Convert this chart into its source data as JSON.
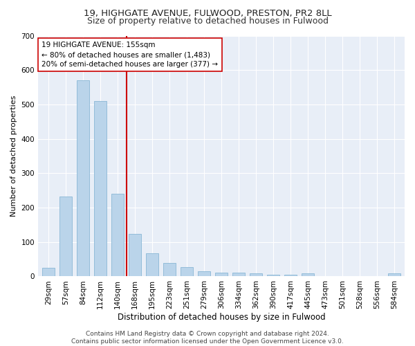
{
  "title1": "19, HIGHGATE AVENUE, FULWOOD, PRESTON, PR2 8LL",
  "title2": "Size of property relative to detached houses in Fulwood",
  "xlabel": "Distribution of detached houses by size in Fulwood",
  "ylabel": "Number of detached properties",
  "categories": [
    "29sqm",
    "57sqm",
    "84sqm",
    "112sqm",
    "140sqm",
    "168sqm",
    "195sqm",
    "223sqm",
    "251sqm",
    "279sqm",
    "306sqm",
    "334sqm",
    "362sqm",
    "390sqm",
    "417sqm",
    "445sqm",
    "473sqm",
    "501sqm",
    "528sqm",
    "556sqm",
    "584sqm"
  ],
  "values": [
    25,
    233,
    570,
    510,
    240,
    123,
    68,
    40,
    27,
    15,
    10,
    10,
    8,
    5,
    5,
    8,
    0,
    0,
    0,
    0,
    8
  ],
  "bar_color": "#bad4ea",
  "bar_edge_color": "#7aaed0",
  "bar_width": 0.75,
  "vline_color": "#cc0000",
  "annotation_text": "19 HIGHGATE AVENUE: 155sqm\n← 80% of detached houses are smaller (1,483)\n20% of semi-detached houses are larger (377) →",
  "annotation_box_color": "#ffffff",
  "annotation_box_edge": "#cc0000",
  "ylim": [
    0,
    700
  ],
  "yticks": [
    0,
    100,
    200,
    300,
    400,
    500,
    600,
    700
  ],
  "footnote": "Contains HM Land Registry data © Crown copyright and database right 2024.\nContains public sector information licensed under the Open Government Licence v3.0.",
  "fig_bg_color": "#ffffff",
  "plot_bg_color": "#e8eef7",
  "grid_color": "#ffffff",
  "title_fontsize": 9.5,
  "subtitle_fontsize": 9,
  "tick_fontsize": 7.5,
  "ylabel_fontsize": 8,
  "xlabel_fontsize": 8.5,
  "annotation_fontsize": 7.5,
  "footnote_fontsize": 6.5
}
